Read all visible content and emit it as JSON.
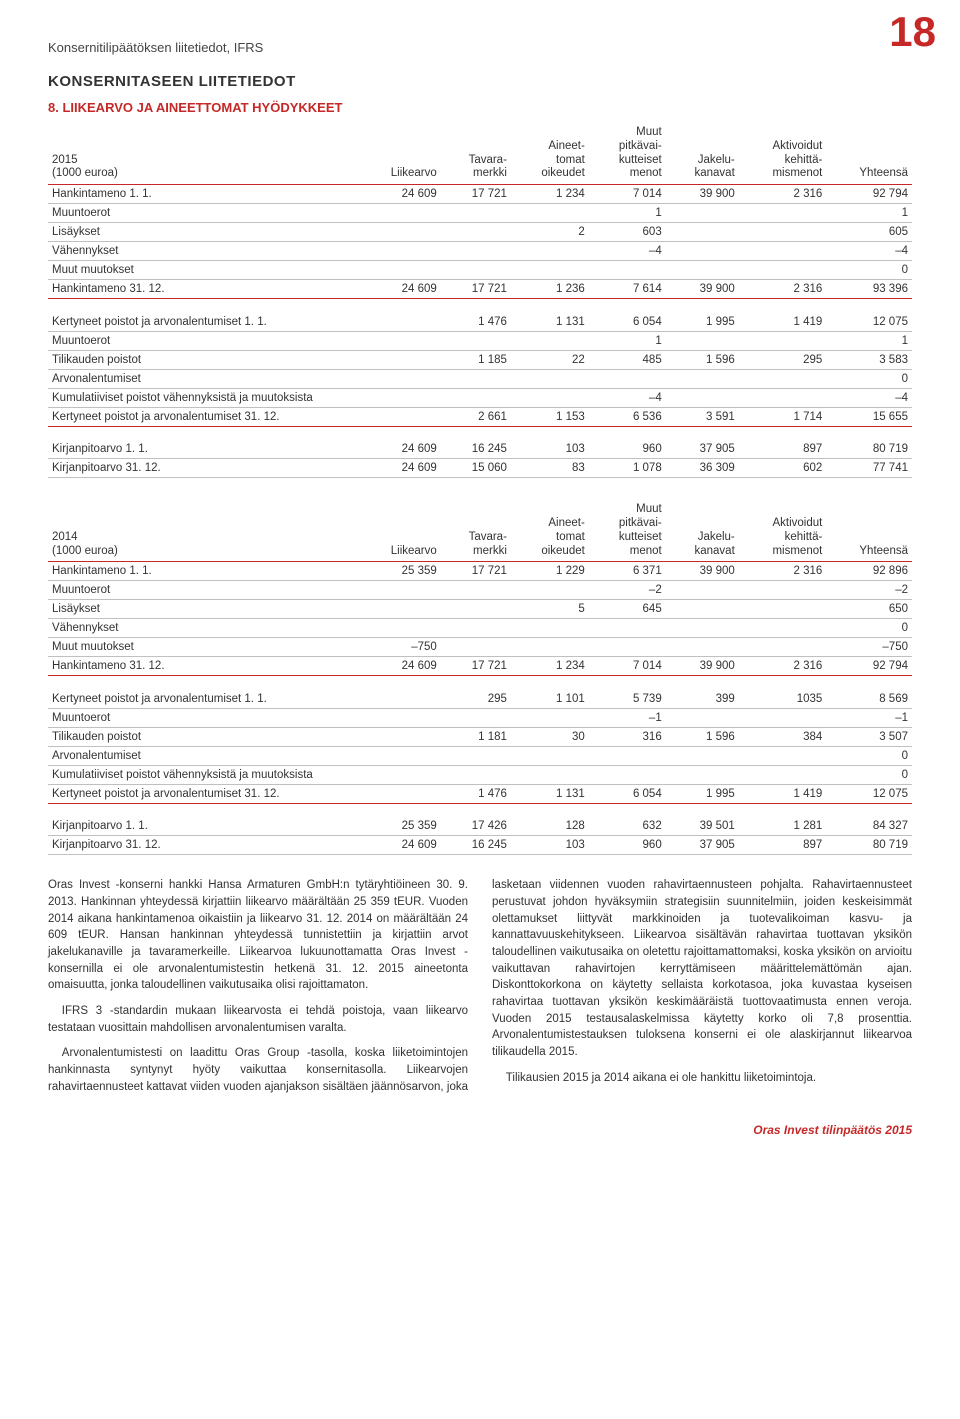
{
  "page_number": "18",
  "doc_subtitle": "Konsernitilipäätöksen liitetiedot, IFRS",
  "section_heading": "KONSERNITASEEN LIITETIEDOT",
  "subsection_heading": "8. LIIKEARVO JA AINEETTOMAT HYÖDYKKEET",
  "table1": {
    "year_label": "2015",
    "unit_label": "(1000 euroa)",
    "columns": [
      "Liikearvo",
      "Tavara-\nmerkki",
      "Aineet-\ntomat\noikeudet",
      "Muut\npitkävai-\nkutteiset\nmenot",
      "Jakelu-\nkanavat",
      "Aktivoidut\nkehittä-\nmismenot",
      "Yhteensä"
    ],
    "rows": [
      {
        "label": "Hankintameno 1. 1.",
        "vals": [
          "24 609",
          "17 721",
          "1 234",
          "7 014",
          "39 900",
          "2 316",
          "92 794"
        ]
      },
      {
        "label": "Muuntoerot",
        "vals": [
          "",
          "",
          "",
          "1",
          "",
          "",
          "1"
        ]
      },
      {
        "label": "Lisäykset",
        "vals": [
          "",
          "",
          "2",
          "603",
          "",
          "",
          "605"
        ]
      },
      {
        "label": "Vähennykset",
        "vals": [
          "",
          "",
          "",
          "–4",
          "",
          "",
          "–4"
        ]
      },
      {
        "label": "Muut muutokset",
        "vals": [
          "",
          "",
          "",
          "",
          "",
          "",
          "0"
        ]
      },
      {
        "label": "Hankintameno 31. 12.",
        "vals": [
          "24 609",
          "17 721",
          "1 236",
          "7 614",
          "39 900",
          "2 316",
          "93 396"
        ],
        "section_break": true
      },
      {
        "spacer": true
      },
      {
        "label": "Kertyneet poistot ja arvonalentumiset 1. 1.",
        "vals": [
          "",
          "1 476",
          "1 131",
          "6 054",
          "1 995",
          "1 419",
          "12 075"
        ]
      },
      {
        "label": "Muuntoerot",
        "vals": [
          "",
          "",
          "",
          "1",
          "",
          "",
          "1"
        ]
      },
      {
        "label": "Tilikauden poistot",
        "vals": [
          "",
          "1 185",
          "22",
          "485",
          "1 596",
          "295",
          "3 583"
        ]
      },
      {
        "label": "Arvonalentumiset",
        "vals": [
          "",
          "",
          "",
          "",
          "",
          "",
          "0"
        ]
      },
      {
        "label": "Kumulatiiviset poistot vähennyksistä ja muutoksista",
        "vals": [
          "",
          "",
          "",
          "–4",
          "",
          "",
          "–4"
        ]
      },
      {
        "label": "Kertyneet poistot ja arvonalentumiset 31. 12.",
        "vals": [
          "",
          "2 661",
          "1 153",
          "6 536",
          "3 591",
          "1 714",
          "15 655"
        ],
        "section_break": true
      },
      {
        "spacer": true
      },
      {
        "label": "Kirjanpitoarvo 1. 1.",
        "vals": [
          "24 609",
          "16 245",
          "103",
          "960",
          "37 905",
          "897",
          "80 719"
        ]
      },
      {
        "label": "Kirjanpitoarvo 31. 12.",
        "vals": [
          "24 609",
          "15 060",
          "83",
          "1 078",
          "36 309",
          "602",
          "77 741"
        ]
      }
    ]
  },
  "table2": {
    "year_label": "2014",
    "unit_label": "(1000 euroa)",
    "columns": [
      "Liikearvo",
      "Tavara-\nmerkki",
      "Aineet-\ntomat\noikeudet",
      "Muut\npitkävai-\nkutteiset\nmenot",
      "Jakelu-\nkanavat",
      "Aktivoidut\nkehittä-\nmismenot",
      "Yhteensä"
    ],
    "rows": [
      {
        "label": "Hankintameno 1. 1.",
        "vals": [
          "25 359",
          "17 721",
          "1 229",
          "6 371",
          "39 900",
          "2 316",
          "92 896"
        ]
      },
      {
        "label": "Muuntoerot",
        "vals": [
          "",
          "",
          "",
          "–2",
          "",
          "",
          "–2"
        ]
      },
      {
        "label": "Lisäykset",
        "vals": [
          "",
          "",
          "5",
          "645",
          "",
          "",
          "650"
        ]
      },
      {
        "label": "Vähennykset",
        "vals": [
          "",
          "",
          "",
          "",
          "",
          "",
          "0"
        ]
      },
      {
        "label": "Muut muutokset",
        "vals": [
          "–750",
          "",
          "",
          "",
          "",
          "",
          "–750"
        ]
      },
      {
        "label": "Hankintameno 31. 12.",
        "vals": [
          "24 609",
          "17 721",
          "1 234",
          "7 014",
          "39 900",
          "2 316",
          "92 794"
        ],
        "section_break": true
      },
      {
        "spacer": true
      },
      {
        "label": "Kertyneet poistot ja arvonalentumiset 1. 1.",
        "vals": [
          "",
          "295",
          "1 101",
          "5 739",
          "399",
          "1035",
          "8 569"
        ]
      },
      {
        "label": "Muuntoerot",
        "vals": [
          "",
          "",
          "",
          "–1",
          "",
          "",
          "–1"
        ]
      },
      {
        "label": "Tilikauden poistot",
        "vals": [
          "",
          "1 181",
          "30",
          "316",
          "1 596",
          "384",
          "3 507"
        ]
      },
      {
        "label": "Arvonalentumiset",
        "vals": [
          "",
          "",
          "",
          "",
          "",
          "",
          "0"
        ]
      },
      {
        "label": "Kumulatiiviset poistot vähennyksistä ja muutoksista",
        "vals": [
          "",
          "",
          "",
          "",
          "",
          "",
          "0"
        ]
      },
      {
        "label": "Kertyneet poistot ja arvonalentumiset 31. 12.",
        "vals": [
          "",
          "1 476",
          "1 131",
          "6 054",
          "1 995",
          "1 419",
          "12 075"
        ],
        "section_break": true
      },
      {
        "spacer": true
      },
      {
        "label": "Kirjanpitoarvo 1. 1.",
        "vals": [
          "25 359",
          "17 426",
          "128",
          "632",
          "39 501",
          "1 281",
          "84 327"
        ]
      },
      {
        "label": "Kirjanpitoarvo 31. 12.",
        "vals": [
          "24 609",
          "16 245",
          "103",
          "960",
          "37 905",
          "897",
          "80 719"
        ]
      }
    ]
  },
  "body_text": {
    "paragraphs": [
      {
        "text": "Oras Invest -konserni hankki Hansa Armaturen GmbH:n tytäryhtiöineen 30. 9. 2013. Hankinnan yhteydessä kirjattiin liikearvo määrältään 25 359 tEUR. Vuoden 2014 aikana hankintamenoa oikaistiin ja liikearvo 31. 12. 2014 on määrältään 24 609 tEUR. Hansan hankinnan yhteydessä tunnistettiin ja kirjattiin arvot jakelukanaville ja tavaramerkeille. Liikearvoa lukuunottamatta Oras Invest -konsernilla ei ole arvonalentumistestin hetkenä 31. 12. 2015 aineetonta omaisuutta, jonka taloudellinen vaikutusaika olisi rajoittamaton."
      },
      {
        "text": "IFRS 3 -standardin mukaan liikearvosta ei tehdä poistoja, vaan liikearvo testataan vuosittain mahdollisen arvonalentumisen varalta.",
        "indent": true
      },
      {
        "text": "Arvonalentumistesti on laadittu Oras Group -tasolla, koska liiketoimintojen hankinnasta syntynyt hyöty vaikuttaa konsernitasolla. Liikearvojen rahavirtaennusteet kattavat viiden vuoden ajanjakson sisältäen jäännösarvon, joka lasketaan viidennen vuoden rahavirtaennusteen pohjalta. Rahavirtaennusteet perustuvat johdon hyväksymiin strategisiin suunnitelmiin, joiden keskeisimmät olettamukset liittyvät markkinoiden ja tuotevalikoiman kasvu- ja kannattavuuskehitykseen. Liikearvoa sisältävän rahavirtaa tuottavan yksikön taloudellinen vaikutusaika on oletettu rajoittamattomaksi, koska yksikön on arvioitu vaikuttavan rahavirtojen kerryttämiseen määrittelemättömän ajan. Diskonttokorkona on käytetty sellaista korkotasoa, joka kuvastaa kyseisen rahavirtaa tuottavan yksikön keskimääräistä tuottovaatimusta ennen veroja. Vuoden 2015 testausalaskelmissa käytetty korko oli 7,8 prosenttia. Arvonalentumistestauksen tuloksena konserni ei ole alaskirjannut liikearvoa tilikaudella 2015.",
        "indent": true
      },
      {
        "text": "Tilikausien 2015 ja 2014 aikana ei ole hankittu liiketoimintoja.",
        "indent": true
      }
    ]
  },
  "footer": "Oras Invest tilinpäätös 2015",
  "styling": {
    "accent_color": "#c62828",
    "border_color": "#c0c0c0",
    "text_color": "#333333",
    "background_color": "#ffffff",
    "body_fontsize": 11.5,
    "heading_fontsize": 15,
    "page_number_fontsize": 42
  }
}
